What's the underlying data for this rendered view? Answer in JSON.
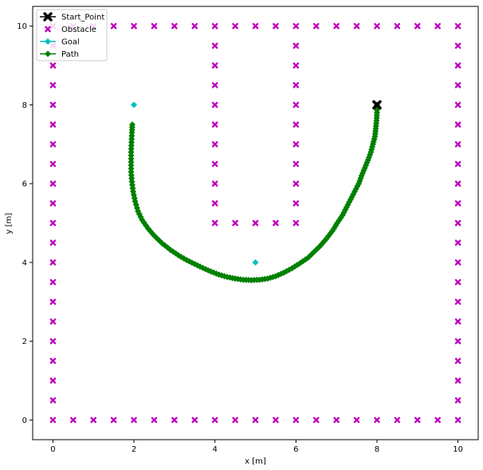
{
  "chart_data": {
    "type": "scatter",
    "title": "",
    "xlabel": "x [m]",
    "ylabel": "y [m]",
    "xlim": [
      -0.5,
      10.5
    ],
    "ylim": [
      -0.5,
      10.5
    ],
    "xticks": [
      0,
      2,
      4,
      6,
      8,
      10
    ],
    "yticks": [
      0,
      2,
      4,
      6,
      8,
      10
    ],
    "grid": false,
    "legend_position": "top-left",
    "series": [
      {
        "name": "Start_Point",
        "marker": "X",
        "color": "#000000",
        "points": [
          [
            8,
            8
          ]
        ]
      },
      {
        "name": "Obstacle",
        "marker": "x",
        "color": "#bf00bf",
        "points": [
          [
            0,
            0
          ],
          [
            0.5,
            0
          ],
          [
            1,
            0
          ],
          [
            1.5,
            0
          ],
          [
            2,
            0
          ],
          [
            2.5,
            0
          ],
          [
            3,
            0
          ],
          [
            3.5,
            0
          ],
          [
            4,
            0
          ],
          [
            4.5,
            0
          ],
          [
            5,
            0
          ],
          [
            5.5,
            0
          ],
          [
            6,
            0
          ],
          [
            6.5,
            0
          ],
          [
            7,
            0
          ],
          [
            7.5,
            0
          ],
          [
            8,
            0
          ],
          [
            8.5,
            0
          ],
          [
            9,
            0
          ],
          [
            9.5,
            0
          ],
          [
            10,
            0
          ],
          [
            0,
            10
          ],
          [
            0.5,
            10
          ],
          [
            1,
            10
          ],
          [
            1.5,
            10
          ],
          [
            2,
            10
          ],
          [
            2.5,
            10
          ],
          [
            3,
            10
          ],
          [
            3.5,
            10
          ],
          [
            4,
            10
          ],
          [
            4.5,
            10
          ],
          [
            5,
            10
          ],
          [
            5.5,
            10
          ],
          [
            6,
            10
          ],
          [
            6.5,
            10
          ],
          [
            7,
            10
          ],
          [
            7.5,
            10
          ],
          [
            8,
            10
          ],
          [
            8.5,
            10
          ],
          [
            9,
            10
          ],
          [
            9.5,
            10
          ],
          [
            10,
            10
          ],
          [
            0,
            0.5
          ],
          [
            0,
            1
          ],
          [
            0,
            1.5
          ],
          [
            0,
            2
          ],
          [
            0,
            2.5
          ],
          [
            0,
            3
          ],
          [
            0,
            3.5
          ],
          [
            0,
            4
          ],
          [
            0,
            4.5
          ],
          [
            0,
            5
          ],
          [
            0,
            5.5
          ],
          [
            0,
            6
          ],
          [
            0,
            6.5
          ],
          [
            0,
            7
          ],
          [
            0,
            7.5
          ],
          [
            0,
            8
          ],
          [
            0,
            8.5
          ],
          [
            0,
            9
          ],
          [
            0,
            9.5
          ],
          [
            10,
            0.5
          ],
          [
            10,
            1
          ],
          [
            10,
            1.5
          ],
          [
            10,
            2
          ],
          [
            10,
            2.5
          ],
          [
            10,
            3
          ],
          [
            10,
            3.5
          ],
          [
            10,
            4
          ],
          [
            10,
            4.5
          ],
          [
            10,
            5
          ],
          [
            10,
            5.5
          ],
          [
            10,
            6
          ],
          [
            10,
            6.5
          ],
          [
            10,
            7
          ],
          [
            10,
            7.5
          ],
          [
            10,
            8
          ],
          [
            10,
            8.5
          ],
          [
            10,
            9
          ],
          [
            10,
            9.5
          ],
          [
            4,
            5
          ],
          [
            4,
            5.5
          ],
          [
            4,
            6
          ],
          [
            4,
            6.5
          ],
          [
            4,
            7
          ],
          [
            4,
            7.5
          ],
          [
            4,
            8
          ],
          [
            4,
            8.5
          ],
          [
            4,
            9
          ],
          [
            4,
            9.5
          ],
          [
            6,
            5
          ],
          [
            6,
            5.5
          ],
          [
            6,
            6
          ],
          [
            6,
            6.5
          ],
          [
            6,
            7
          ],
          [
            6,
            7.5
          ],
          [
            6,
            8
          ],
          [
            6,
            8.5
          ],
          [
            6,
            9
          ],
          [
            6,
            9.5
          ],
          [
            4.5,
            5
          ],
          [
            5,
            5
          ],
          [
            5.5,
            5
          ]
        ]
      },
      {
        "name": "Goal",
        "marker": "D",
        "color": "#00bfbf",
        "points": [
          [
            2,
            8
          ],
          [
            5,
            4
          ]
        ]
      },
      {
        "name": "Path",
        "marker": "D",
        "line": true,
        "color": "#008000",
        "points": [
          [
            8,
            8
          ],
          [
            8,
            7.8
          ],
          [
            7.99,
            7.6
          ],
          [
            7.97,
            7.4
          ],
          [
            7.95,
            7.2
          ],
          [
            7.9,
            7
          ],
          [
            7.85,
            6.8
          ],
          [
            7.78,
            6.6
          ],
          [
            7.7,
            6.4
          ],
          [
            7.62,
            6.2
          ],
          [
            7.55,
            6
          ],
          [
            7.45,
            5.8
          ],
          [
            7.35,
            5.6
          ],
          [
            7.25,
            5.4
          ],
          [
            7.15,
            5.2
          ],
          [
            7.02,
            5
          ],
          [
            6.9,
            4.8
          ],
          [
            6.75,
            4.6
          ],
          [
            6.6,
            4.42
          ],
          [
            6.45,
            4.27
          ],
          [
            6.3,
            4.12
          ],
          [
            6.1,
            3.98
          ],
          [
            5.9,
            3.85
          ],
          [
            5.7,
            3.74
          ],
          [
            5.5,
            3.65
          ],
          [
            5.3,
            3.59
          ],
          [
            5.1,
            3.56
          ],
          [
            4.9,
            3.55
          ],
          [
            4.7,
            3.56
          ],
          [
            4.5,
            3.59
          ],
          [
            4.3,
            3.63
          ],
          [
            4.1,
            3.69
          ],
          [
            3.9,
            3.77
          ],
          [
            3.7,
            3.86
          ],
          [
            3.5,
            3.96
          ],
          [
            3.3,
            4.06
          ],
          [
            3.1,
            4.18
          ],
          [
            2.9,
            4.32
          ],
          [
            2.7,
            4.48
          ],
          [
            2.5,
            4.68
          ],
          [
            2.35,
            4.86
          ],
          [
            2.2,
            5.08
          ],
          [
            2.1,
            5.3
          ],
          [
            2.03,
            5.55
          ],
          [
            1.98,
            5.8
          ],
          [
            1.95,
            6.05
          ],
          [
            1.93,
            6.3
          ],
          [
            1.93,
            6.55
          ],
          [
            1.93,
            6.8
          ],
          [
            1.94,
            7.05
          ],
          [
            1.95,
            7.3
          ],
          [
            1.96,
            7.5
          ]
        ]
      }
    ]
  }
}
